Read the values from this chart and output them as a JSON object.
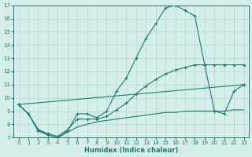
{
  "xlabel": "Humidex (Indice chaleur)",
  "xlim": [
    -0.5,
    23.5
  ],
  "ylim": [
    7,
    17
  ],
  "xticks": [
    0,
    1,
    2,
    3,
    4,
    5,
    6,
    7,
    8,
    9,
    10,
    11,
    12,
    13,
    14,
    15,
    16,
    17,
    18,
    19,
    20,
    21,
    22,
    23
  ],
  "yticks": [
    7,
    8,
    9,
    10,
    11,
    12,
    13,
    14,
    15,
    16,
    17
  ],
  "bg_color": "#d5eeec",
  "grid_color": "#b0d8d4",
  "line_color": "#1e7b6e",
  "line1_x": [
    0,
    1,
    2,
    3,
    4,
    5,
    6,
    7,
    8,
    9,
    10,
    11,
    12,
    13,
    14,
    15,
    16,
    17,
    18,
    19,
    20,
    21,
    22,
    23
  ],
  "line1_y": [
    9.5,
    8.8,
    7.5,
    7.2,
    7.0,
    7.5,
    8.8,
    8.8,
    8.5,
    9.0,
    10.5,
    11.5,
    13.0,
    14.5,
    15.6,
    16.8,
    17.0,
    16.6,
    16.2,
    12.5,
    9.0,
    8.8,
    10.5,
    11.0
  ],
  "line2_x": [
    0,
    1,
    2,
    3,
    4,
    5,
    6,
    7,
    8,
    9,
    10,
    11,
    12,
    13,
    14,
    15,
    16,
    17,
    18,
    19,
    20,
    21,
    22,
    23
  ],
  "line2_y": [
    9.5,
    8.8,
    7.6,
    7.3,
    7.1,
    7.6,
    8.4,
    8.4,
    8.4,
    8.6,
    9.1,
    9.6,
    10.3,
    10.9,
    11.4,
    11.8,
    12.1,
    12.3,
    12.5,
    12.5,
    12.5,
    12.5,
    12.5,
    12.5
  ],
  "line3_x": [
    0,
    23
  ],
  "line3_y": [
    9.5,
    11.0
  ],
  "line4_x": [
    0,
    1,
    2,
    3,
    4,
    5,
    6,
    7,
    8,
    9,
    10,
    11,
    12,
    13,
    14,
    15,
    16,
    17,
    18,
    19,
    20,
    21,
    22,
    23
  ],
  "line4_y": [
    9.5,
    8.8,
    7.6,
    7.2,
    7.0,
    7.4,
    7.8,
    8.0,
    8.2,
    8.3,
    8.4,
    8.5,
    8.6,
    8.7,
    8.8,
    8.9,
    8.9,
    9.0,
    9.0,
    9.0,
    9.0,
    9.0,
    9.1,
    9.1
  ]
}
